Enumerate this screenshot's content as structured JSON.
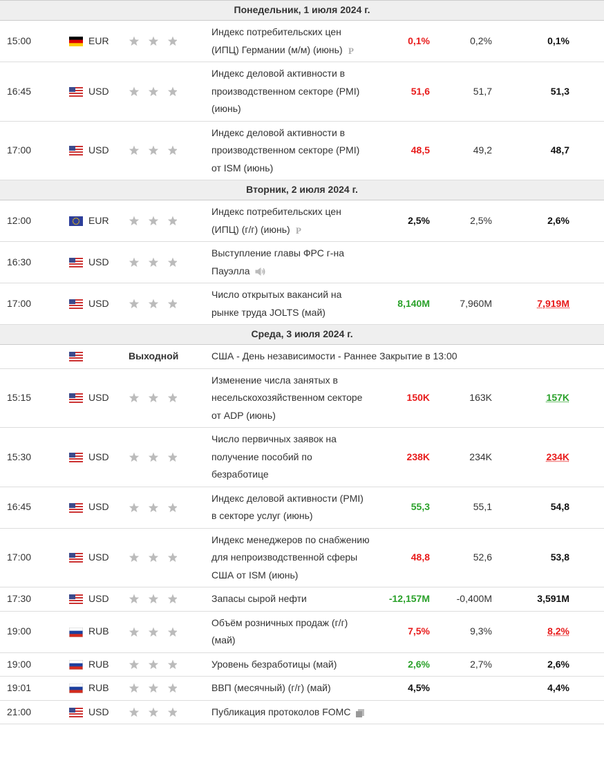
{
  "days": [
    {
      "title": "Понедельник, 1 июля 2024 г.",
      "events": [
        {
          "time": "15:00",
          "flag": "de",
          "currency": "EUR",
          "event": "Индекс потребительских цен (ИПЦ) Германии (м/м) (июнь)",
          "icon": "p",
          "actual": "0,1%",
          "actual_color": "red",
          "forecast": "0,2%",
          "previous": "0,1%"
        },
        {
          "time": "16:45",
          "flag": "us",
          "currency": "USD",
          "event": "Индекс деловой активности в производственном секторе (PMI) (июнь)",
          "actual": "51,6",
          "actual_color": "red",
          "forecast": "51,7",
          "previous": "51,3"
        },
        {
          "time": "17:00",
          "flag": "us",
          "currency": "USD",
          "event": "Индекс деловой активности в производственном секторе (PMI) от ISM (июнь)",
          "actual": "48,5",
          "actual_color": "red",
          "forecast": "49,2",
          "previous": "48,7"
        }
      ]
    },
    {
      "title": "Вторник, 2 июля 2024 г.",
      "events": [
        {
          "time": "12:00",
          "flag": "eu",
          "currency": "EUR",
          "event": "Индекс потребительских цен (ИПЦ) (г/г) (июнь)",
          "icon": "p",
          "actual": "2,5%",
          "actual_color": "black",
          "forecast": "2,5%",
          "previous": "2,6%"
        },
        {
          "time": "16:30",
          "flag": "us",
          "currency": "USD",
          "event": "Выступление главы ФРС г-на Пауэлла",
          "icon": "speaker"
        },
        {
          "time": "17:00",
          "flag": "us",
          "currency": "USD",
          "event": "Число открытых вакансий на рынке труда JOLTS (май)",
          "actual": "8,140M",
          "actual_color": "green",
          "forecast": "7,960M",
          "previous": "7,919M",
          "previous_color": "red"
        }
      ]
    },
    {
      "title": "Среда, 3 июля 2024 г.",
      "events": [
        {
          "flag": "us",
          "holiday": "Выходной",
          "event": "США - День независимости - Раннее Закрытие в 13:00"
        },
        {
          "time": "15:15",
          "flag": "us",
          "currency": "USD",
          "event": "Изменение числа занятых в несельскохозяйственном секторе от ADP (июнь)",
          "actual": "150K",
          "actual_color": "red",
          "forecast": "163K",
          "previous": "157K",
          "previous_color": "green"
        },
        {
          "time": "15:30",
          "flag": "us",
          "currency": "USD",
          "event": "Число первичных заявок на получение пособий по безработице",
          "actual": "238K",
          "actual_color": "red",
          "forecast": "234K",
          "previous": "234K",
          "previous_color": "red"
        },
        {
          "time": "16:45",
          "flag": "us",
          "currency": "USD",
          "event": "Индекс деловой активности (PMI) в секторе услуг (июнь)",
          "actual": "55,3",
          "actual_color": "green",
          "forecast": "55,1",
          "previous": "54,8"
        },
        {
          "time": "17:00",
          "flag": "us",
          "currency": "USD",
          "event": "Индекс менеджеров по снабжению для непроизводственной сферы США от ISM (июнь)",
          "actual": "48,8",
          "actual_color": "red",
          "forecast": "52,6",
          "previous": "53,8"
        },
        {
          "time": "17:30",
          "flag": "us",
          "currency": "USD",
          "event": "Запасы сырой нефти",
          "actual": "-12,157M",
          "actual_color": "green",
          "forecast": "-0,400M",
          "previous": "3,591M"
        },
        {
          "time": "19:00",
          "flag": "ru",
          "currency": "RUB",
          "event": "Объём розничных продаж (г/г) (май)",
          "actual": "7,5%",
          "actual_color": "red",
          "forecast": "9,3%",
          "previous": "8,2%",
          "previous_color": "red"
        },
        {
          "time": "19:00",
          "flag": "ru",
          "currency": "RUB",
          "event": "Уровень безработицы (май)",
          "actual": "2,6%",
          "actual_color": "green",
          "forecast": "2,7%",
          "previous": "2,6%"
        },
        {
          "time": "19:01",
          "flag": "ru",
          "currency": "RUB",
          "event": "ВВП (месячный) (г/г) (май)",
          "actual": "4,5%",
          "actual_color": "black",
          "previous": "4,4%"
        },
        {
          "time": "21:00",
          "flag": "us",
          "currency": "USD",
          "event": "Публикация протоколов FOMC",
          "icon": "doc"
        }
      ]
    }
  ]
}
